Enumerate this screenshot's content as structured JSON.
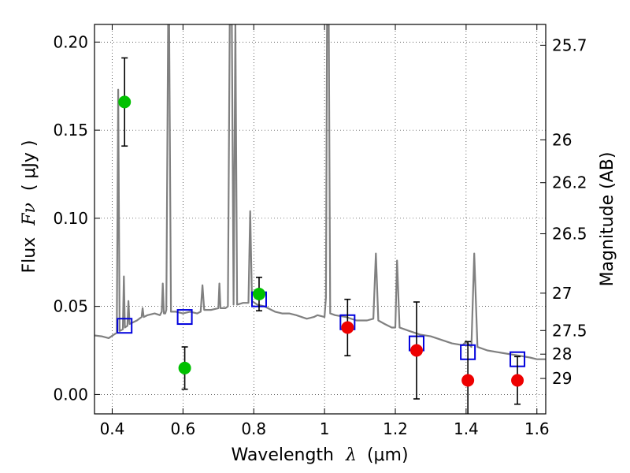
{
  "chart_data": {
    "type": "scatter",
    "title": "",
    "xlabel": {
      "prefix": "Wavelength",
      "symbol": "λ",
      "unit": "(μm)"
    },
    "ylabel": {
      "prefix": "Flux",
      "symbol": "Fν",
      "unit": "( μJy )"
    },
    "y2label": "Magnitude (AB)",
    "xlim": [
      0.35,
      1.625
    ],
    "ylim": [
      -0.011,
      0.21
    ],
    "grid": true,
    "x_ticks": [
      {
        "value": 0.4,
        "label": "0.4"
      },
      {
        "value": 0.6,
        "label": "0.6"
      },
      {
        "value": 0.8,
        "label": "0.8"
      },
      {
        "value": 1.0,
        "label": "1"
      },
      {
        "value": 1.2,
        "label": "1.2"
      },
      {
        "value": 1.4,
        "label": "1.4"
      },
      {
        "value": 1.6,
        "label": "1.6"
      }
    ],
    "y_ticks": [
      {
        "value": 0.0,
        "label": "0.00"
      },
      {
        "value": 0.05,
        "label": "0.05"
      },
      {
        "value": 0.1,
        "label": "0.10"
      },
      {
        "value": 0.15,
        "label": "0.15"
      },
      {
        "value": 0.2,
        "label": "0.20"
      }
    ],
    "magnitude_ticks": [
      {
        "flux": 0.1982,
        "label": "25.7"
      },
      {
        "flux": 0.1445,
        "label": "26"
      },
      {
        "flux": 0.1202,
        "label": "26.2"
      },
      {
        "flux": 0.0912,
        "label": "26.5"
      },
      {
        "flux": 0.0575,
        "label": "27"
      },
      {
        "flux": 0.0363,
        "label": "27.5"
      },
      {
        "flux": 0.0229,
        "label": "28"
      },
      {
        "flux": 0.0091,
        "label": "29"
      }
    ],
    "colors": {
      "spectrum": "#808080",
      "green_points": "#00c000",
      "red_points": "#ee0000",
      "model_boxes": "#0000dd",
      "error_bars": "#000000"
    },
    "spectrum": [
      [
        0.35,
        0.0335
      ],
      [
        0.37,
        0.033
      ],
      [
        0.39,
        0.032
      ],
      [
        0.405,
        0.034
      ],
      [
        0.413,
        0.035
      ],
      [
        0.417,
        0.173
      ],
      [
        0.421,
        0.036
      ],
      [
        0.43,
        0.037
      ],
      [
        0.433,
        0.067
      ],
      [
        0.436,
        0.038
      ],
      [
        0.443,
        0.039
      ],
      [
        0.446,
        0.053
      ],
      [
        0.449,
        0.04
      ],
      [
        0.47,
        0.042
      ],
      [
        0.483,
        0.044
      ],
      [
        0.486,
        0.049
      ],
      [
        0.489,
        0.044
      ],
      [
        0.5,
        0.045
      ],
      [
        0.52,
        0.046
      ],
      [
        0.535,
        0.045
      ],
      [
        0.54,
        0.047
      ],
      [
        0.543,
        0.063
      ],
      [
        0.546,
        0.046
      ],
      [
        0.55,
        0.046
      ],
      [
        0.553,
        0.048
      ],
      [
        0.558,
        0.21
      ],
      [
        0.561,
        0.21
      ],
      [
        0.566,
        0.047
      ],
      [
        0.58,
        0.047
      ],
      [
        0.6,
        0.046
      ],
      [
        0.62,
        0.047
      ],
      [
        0.64,
        0.046
      ],
      [
        0.65,
        0.047
      ],
      [
        0.655,
        0.062
      ],
      [
        0.66,
        0.048
      ],
      [
        0.68,
        0.048
      ],
      [
        0.7,
        0.049
      ],
      [
        0.703,
        0.063
      ],
      [
        0.706,
        0.049
      ],
      [
        0.72,
        0.049
      ],
      [
        0.727,
        0.05
      ],
      [
        0.732,
        0.21
      ],
      [
        0.738,
        0.21
      ],
      [
        0.743,
        0.051
      ],
      [
        0.748,
        0.21
      ],
      [
        0.753,
        0.051
      ],
      [
        0.77,
        0.052
      ],
      [
        0.785,
        0.052
      ],
      [
        0.79,
        0.104
      ],
      [
        0.795,
        0.053
      ],
      [
        0.81,
        0.051
      ],
      [
        0.83,
        0.05
      ],
      [
        0.86,
        0.047
      ],
      [
        0.88,
        0.046
      ],
      [
        0.9,
        0.046
      ],
      [
        0.92,
        0.045
      ],
      [
        0.95,
        0.043
      ],
      [
        0.97,
        0.044
      ],
      [
        0.98,
        0.045
      ],
      [
        1.0,
        0.044
      ],
      [
        1.004,
        0.055
      ],
      [
        1.007,
        0.21
      ],
      [
        1.012,
        0.21
      ],
      [
        1.016,
        0.046
      ],
      [
        1.03,
        0.045
      ],
      [
        1.06,
        0.044
      ],
      [
        1.09,
        0.042
      ],
      [
        1.12,
        0.042
      ],
      [
        1.138,
        0.043
      ],
      [
        1.145,
        0.08
      ],
      [
        1.152,
        0.042
      ],
      [
        1.17,
        0.04
      ],
      [
        1.19,
        0.038
      ],
      [
        1.2,
        0.038
      ],
      [
        1.205,
        0.076
      ],
      [
        1.212,
        0.038
      ],
      [
        1.24,
        0.036
      ],
      [
        1.27,
        0.034
      ],
      [
        1.3,
        0.033
      ],
      [
        1.33,
        0.031
      ],
      [
        1.36,
        0.029
      ],
      [
        1.39,
        0.028
      ],
      [
        1.4,
        0.03
      ],
      [
        1.415,
        0.027
      ],
      [
        1.423,
        0.08
      ],
      [
        1.432,
        0.027
      ],
      [
        1.46,
        0.025
      ],
      [
        1.49,
        0.024
      ],
      [
        1.52,
        0.023
      ],
      [
        1.55,
        0.022
      ],
      [
        1.58,
        0.021
      ],
      [
        1.6,
        0.02
      ],
      [
        1.625,
        0.02
      ]
    ],
    "green_points": [
      {
        "x": 0.435,
        "y": 0.166,
        "yerr": 0.025
      },
      {
        "x": 0.605,
        "y": 0.015,
        "yerr": 0.012
      },
      {
        "x": 0.815,
        "y": 0.057,
        "yerr": 0.0095
      }
    ],
    "red_points": [
      {
        "x": 1.065,
        "y": 0.038,
        "yerr": 0.016
      },
      {
        "x": 1.26,
        "y": 0.025,
        "yerr": 0.0275
      },
      {
        "x": 1.405,
        "y": 0.008,
        "yerr": 0.022
      },
      {
        "x": 1.545,
        "y": 0.008,
        "yerr": 0.0135
      }
    ],
    "model_boxes": [
      {
        "x": 0.435,
        "y": 0.039
      },
      {
        "x": 0.605,
        "y": 0.044
      },
      {
        "x": 0.815,
        "y": 0.054
      },
      {
        "x": 1.065,
        "y": 0.041
      },
      {
        "x": 1.26,
        "y": 0.029
      },
      {
        "x": 1.405,
        "y": 0.024
      },
      {
        "x": 1.545,
        "y": 0.02
      }
    ]
  }
}
